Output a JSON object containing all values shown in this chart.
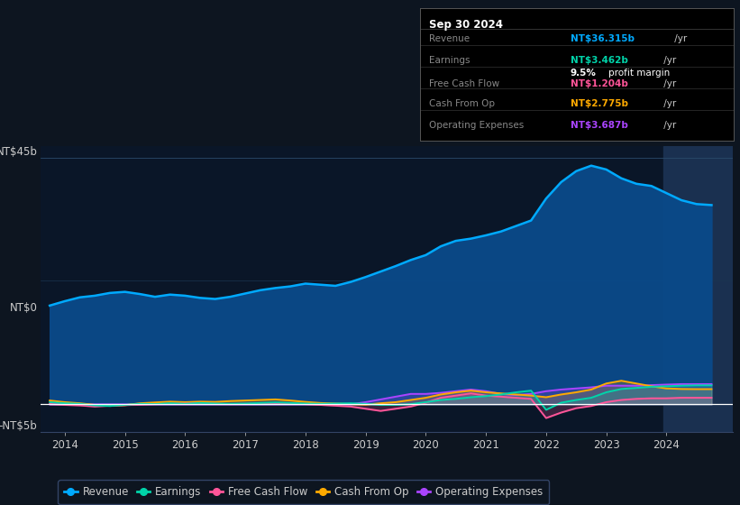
{
  "background_color": "#0d1520",
  "plot_bg_color": "#0a1628",
  "text_color": "#cccccc",
  "series": {
    "Revenue": {
      "color": "#00aaff",
      "fill_color": "#0a4a8a",
      "fill_alpha": 0.95,
      "linewidth": 1.8,
      "data": [
        [
          2013.75,
          18.0
        ],
        [
          2014.0,
          18.8
        ],
        [
          2014.25,
          19.5
        ],
        [
          2014.5,
          19.8
        ],
        [
          2014.75,
          20.3
        ],
        [
          2015.0,
          20.5
        ],
        [
          2015.25,
          20.1
        ],
        [
          2015.5,
          19.6
        ],
        [
          2015.75,
          20.0
        ],
        [
          2016.0,
          19.8
        ],
        [
          2016.25,
          19.4
        ],
        [
          2016.5,
          19.2
        ],
        [
          2016.75,
          19.6
        ],
        [
          2017.0,
          20.2
        ],
        [
          2017.25,
          20.8
        ],
        [
          2017.5,
          21.2
        ],
        [
          2017.75,
          21.5
        ],
        [
          2018.0,
          22.0
        ],
        [
          2018.25,
          21.8
        ],
        [
          2018.5,
          21.6
        ],
        [
          2018.75,
          22.3
        ],
        [
          2019.0,
          23.2
        ],
        [
          2019.25,
          24.2
        ],
        [
          2019.5,
          25.2
        ],
        [
          2019.75,
          26.3
        ],
        [
          2020.0,
          27.2
        ],
        [
          2020.25,
          28.8
        ],
        [
          2020.5,
          29.8
        ],
        [
          2020.75,
          30.2
        ],
        [
          2021.0,
          30.8
        ],
        [
          2021.25,
          31.5
        ],
        [
          2021.5,
          32.5
        ],
        [
          2021.75,
          33.5
        ],
        [
          2022.0,
          37.5
        ],
        [
          2022.25,
          40.5
        ],
        [
          2022.5,
          42.5
        ],
        [
          2022.75,
          43.5
        ],
        [
          2023.0,
          42.8
        ],
        [
          2023.25,
          41.2
        ],
        [
          2023.5,
          40.2
        ],
        [
          2023.75,
          39.8
        ],
        [
          2024.0,
          38.5
        ],
        [
          2024.25,
          37.2
        ],
        [
          2024.5,
          36.5
        ],
        [
          2024.75,
          36.315
        ]
      ]
    },
    "Earnings": {
      "color": "#00d4aa",
      "fill_color": "#00d4aa",
      "fill_alpha": 0.2,
      "linewidth": 1.4,
      "data": [
        [
          2013.75,
          0.4
        ],
        [
          2014.0,
          0.2
        ],
        [
          2014.25,
          0.1
        ],
        [
          2014.5,
          -0.2
        ],
        [
          2014.75,
          -0.3
        ],
        [
          2015.0,
          -0.1
        ],
        [
          2015.25,
          0.1
        ],
        [
          2015.5,
          0.05
        ],
        [
          2015.75,
          0.2
        ],
        [
          2016.0,
          0.1
        ],
        [
          2016.25,
          0.25
        ],
        [
          2016.5,
          0.15
        ],
        [
          2016.75,
          0.1
        ],
        [
          2017.0,
          0.15
        ],
        [
          2017.25,
          0.25
        ],
        [
          2017.5,
          0.35
        ],
        [
          2017.75,
          0.25
        ],
        [
          2018.0,
          0.15
        ],
        [
          2018.25,
          0.1
        ],
        [
          2018.5,
          0.15
        ],
        [
          2018.75,
          0.2
        ],
        [
          2019.0,
          0.1
        ],
        [
          2019.25,
          -0.1
        ],
        [
          2019.5,
          -0.1
        ],
        [
          2019.75,
          0.05
        ],
        [
          2020.0,
          0.4
        ],
        [
          2020.25,
          0.8
        ],
        [
          2020.5,
          1.0
        ],
        [
          2020.75,
          1.3
        ],
        [
          2021.0,
          1.5
        ],
        [
          2021.25,
          1.8
        ],
        [
          2021.5,
          2.2
        ],
        [
          2021.75,
          2.5
        ],
        [
          2022.0,
          -1.0
        ],
        [
          2022.25,
          0.3
        ],
        [
          2022.5,
          0.8
        ],
        [
          2022.75,
          1.2
        ],
        [
          2023.0,
          2.2
        ],
        [
          2023.25,
          2.8
        ],
        [
          2023.5,
          3.0
        ],
        [
          2023.75,
          3.2
        ],
        [
          2024.0,
          3.3
        ],
        [
          2024.25,
          3.4
        ],
        [
          2024.5,
          3.462
        ],
        [
          2024.75,
          3.462
        ]
      ]
    },
    "Free Cash Flow": {
      "color": "#ff5599",
      "fill_color": "#ff5599",
      "fill_alpha": 0.2,
      "linewidth": 1.4,
      "data": [
        [
          2013.75,
          0.05
        ],
        [
          2014.0,
          -0.1
        ],
        [
          2014.25,
          -0.2
        ],
        [
          2014.5,
          -0.4
        ],
        [
          2014.75,
          -0.25
        ],
        [
          2015.0,
          -0.15
        ],
        [
          2015.25,
          -0.05
        ],
        [
          2015.5,
          0.05
        ],
        [
          2015.75,
          0.1
        ],
        [
          2016.0,
          0.15
        ],
        [
          2016.25,
          0.25
        ],
        [
          2016.5,
          0.1
        ],
        [
          2016.75,
          0.05
        ],
        [
          2017.0,
          0.1
        ],
        [
          2017.25,
          0.15
        ],
        [
          2017.5,
          0.25
        ],
        [
          2017.75,
          0.15
        ],
        [
          2018.0,
          0.05
        ],
        [
          2018.25,
          -0.1
        ],
        [
          2018.5,
          -0.25
        ],
        [
          2018.75,
          -0.4
        ],
        [
          2019.0,
          -0.8
        ],
        [
          2019.25,
          -1.2
        ],
        [
          2019.5,
          -0.8
        ],
        [
          2019.75,
          -0.4
        ],
        [
          2020.0,
          0.3
        ],
        [
          2020.25,
          1.2
        ],
        [
          2020.5,
          1.6
        ],
        [
          2020.75,
          2.0
        ],
        [
          2021.0,
          1.6
        ],
        [
          2021.25,
          1.4
        ],
        [
          2021.5,
          1.2
        ],
        [
          2021.75,
          1.0
        ],
        [
          2022.0,
          -2.5
        ],
        [
          2022.25,
          -1.5
        ],
        [
          2022.5,
          -0.7
        ],
        [
          2022.75,
          -0.3
        ],
        [
          2023.0,
          0.4
        ],
        [
          2023.25,
          0.8
        ],
        [
          2023.5,
          1.0
        ],
        [
          2023.75,
          1.1
        ],
        [
          2024.0,
          1.1
        ],
        [
          2024.25,
          1.204
        ],
        [
          2024.5,
          1.204
        ],
        [
          2024.75,
          1.204
        ]
      ]
    },
    "Cash From Op": {
      "color": "#ffaa00",
      "fill_color": "#ffaa00",
      "fill_alpha": 0.2,
      "linewidth": 1.4,
      "data": [
        [
          2013.75,
          0.7
        ],
        [
          2014.0,
          0.4
        ],
        [
          2014.25,
          0.2
        ],
        [
          2014.5,
          -0.1
        ],
        [
          2014.75,
          -0.25
        ],
        [
          2015.0,
          -0.15
        ],
        [
          2015.25,
          0.2
        ],
        [
          2015.5,
          0.35
        ],
        [
          2015.75,
          0.5
        ],
        [
          2016.0,
          0.4
        ],
        [
          2016.25,
          0.5
        ],
        [
          2016.5,
          0.45
        ],
        [
          2016.75,
          0.6
        ],
        [
          2017.0,
          0.7
        ],
        [
          2017.25,
          0.8
        ],
        [
          2017.5,
          0.9
        ],
        [
          2017.75,
          0.7
        ],
        [
          2018.0,
          0.45
        ],
        [
          2018.25,
          0.25
        ],
        [
          2018.5,
          0.15
        ],
        [
          2018.75,
          0.05
        ],
        [
          2019.0,
          -0.05
        ],
        [
          2019.25,
          0.2
        ],
        [
          2019.5,
          0.4
        ],
        [
          2019.75,
          0.8
        ],
        [
          2020.0,
          1.2
        ],
        [
          2020.25,
          1.8
        ],
        [
          2020.5,
          2.2
        ],
        [
          2020.75,
          2.5
        ],
        [
          2021.0,
          2.2
        ],
        [
          2021.25,
          2.0
        ],
        [
          2021.5,
          1.8
        ],
        [
          2021.75,
          1.6
        ],
        [
          2022.0,
          1.3
        ],
        [
          2022.25,
          1.8
        ],
        [
          2022.5,
          2.2
        ],
        [
          2022.75,
          2.7
        ],
        [
          2023.0,
          3.8
        ],
        [
          2023.25,
          4.3
        ],
        [
          2023.5,
          3.8
        ],
        [
          2023.75,
          3.3
        ],
        [
          2024.0,
          2.9
        ],
        [
          2024.25,
          2.8
        ],
        [
          2024.5,
          2.775
        ],
        [
          2024.75,
          2.775
        ]
      ]
    },
    "Operating Expenses": {
      "color": "#aa44ff",
      "fill_color": "#aa44ff",
      "fill_alpha": 0.2,
      "linewidth": 1.4,
      "data": [
        [
          2013.75,
          0.0
        ],
        [
          2014.0,
          0.0
        ],
        [
          2014.25,
          0.0
        ],
        [
          2014.5,
          0.0
        ],
        [
          2014.75,
          0.0
        ],
        [
          2015.0,
          0.0
        ],
        [
          2015.25,
          0.0
        ],
        [
          2015.5,
          0.0
        ],
        [
          2015.75,
          0.0
        ],
        [
          2016.0,
          0.0
        ],
        [
          2016.25,
          0.0
        ],
        [
          2016.5,
          0.0
        ],
        [
          2016.75,
          0.0
        ],
        [
          2017.0,
          0.0
        ],
        [
          2017.25,
          0.0
        ],
        [
          2017.5,
          0.0
        ],
        [
          2017.75,
          0.0
        ],
        [
          2018.0,
          0.0
        ],
        [
          2018.25,
          0.0
        ],
        [
          2018.5,
          0.0
        ],
        [
          2018.75,
          0.0
        ],
        [
          2019.0,
          0.4
        ],
        [
          2019.25,
          0.9
        ],
        [
          2019.5,
          1.4
        ],
        [
          2019.75,
          1.9
        ],
        [
          2020.0,
          1.9
        ],
        [
          2020.25,
          2.1
        ],
        [
          2020.5,
          2.4
        ],
        [
          2020.75,
          2.7
        ],
        [
          2021.0,
          2.4
        ],
        [
          2021.25,
          1.9
        ],
        [
          2021.5,
          1.7
        ],
        [
          2021.75,
          1.9
        ],
        [
          2022.0,
          2.4
        ],
        [
          2022.25,
          2.7
        ],
        [
          2022.5,
          2.9
        ],
        [
          2022.75,
          3.1
        ],
        [
          2023.0,
          3.4
        ],
        [
          2023.25,
          3.4
        ],
        [
          2023.5,
          3.4
        ],
        [
          2023.75,
          3.5
        ],
        [
          2024.0,
          3.6
        ],
        [
          2024.25,
          3.687
        ],
        [
          2024.5,
          3.687
        ],
        [
          2024.75,
          3.687
        ]
      ]
    }
  },
  "tooltip": {
    "title": "Sep 30 2024",
    "rows": [
      {
        "label": "Revenue",
        "value": "NT$36.315b",
        "value_color": "#00aaff",
        "extra": null
      },
      {
        "label": "Earnings",
        "value": "NT$3.462b",
        "value_color": "#00d4aa",
        "extra": "9.5% profit margin"
      },
      {
        "label": "Free Cash Flow",
        "value": "NT$1.204b",
        "value_color": "#ff5599",
        "extra": null
      },
      {
        "label": "Cash From Op",
        "value": "NT$2.775b",
        "value_color": "#ffaa00",
        "extra": null
      },
      {
        "label": "Operating Expenses",
        "value": "NT$3.687b",
        "value_color": "#aa44ff",
        "extra": null
      }
    ]
  },
  "legend": [
    {
      "label": "Revenue",
      "color": "#00aaff"
    },
    {
      "label": "Earnings",
      "color": "#00d4aa"
    },
    {
      "label": "Free Cash Flow",
      "color": "#ff5599"
    },
    {
      "label": "Cash From Op",
      "color": "#ffaa00"
    },
    {
      "label": "Operating Expenses",
      "color": "#aa44ff"
    }
  ],
  "ylim": [
    -5,
    47
  ],
  "xlim": [
    2013.6,
    2025.1
  ],
  "xticks": [
    2014,
    2015,
    2016,
    2017,
    2018,
    2019,
    2020,
    2021,
    2022,
    2023,
    2024
  ],
  "highlight_x_start": 2023.95,
  "highlight_x_end": 2025.1,
  "highlight_color": "#1a3050"
}
